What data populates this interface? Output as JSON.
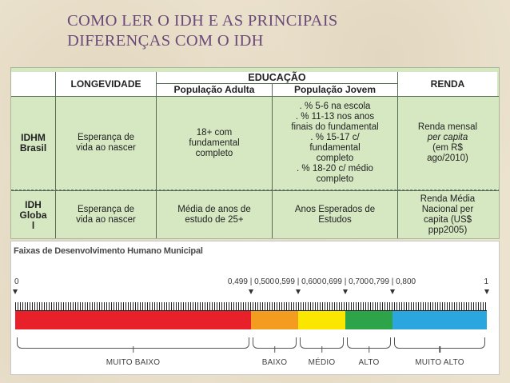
{
  "title": {
    "line1": "COMO LER O IDH E AS PRINCIPAIS",
    "line2": "DIFERENÇAS COM O IDH"
  },
  "table": {
    "headers": {
      "longevidade": "LONGEVIDADE",
      "educacao": "EDUCAÇÃO",
      "populacao_adulta": "População Adulta",
      "populacao_jovem": "População Jovem",
      "renda": "RENDA"
    },
    "rows": {
      "idhm": {
        "label_line1": "IDHM",
        "label_line2": "Brasil",
        "longevidade_line1": "Esperança de",
        "longevidade_line2": "vida ao nascer",
        "adulta_line1": "18+ com",
        "adulta_line2": "fundamental",
        "adulta_line3": "completo",
        "jovem": [
          ". % 5-6 na escola",
          ". % 11-13 nos anos",
          "finais do fundamental",
          ". % 15-17 c/",
          "fundamental",
          "completo",
          ". % 18-20 c/ médio",
          "completo"
        ],
        "renda_line1": "Renda mensal",
        "renda_line2": "per capita",
        "renda_line3": "(em R$",
        "renda_line4": "ago/2010)"
      },
      "idh": {
        "label_line1": "IDH",
        "label_line2": "Globa",
        "label_line3": "l",
        "longevidade_line1": "Esperança de",
        "longevidade_line2": "vida ao nascer",
        "adulta_line1": "Média de anos de",
        "adulta_line2": "estudo de 25+",
        "jovem_line1": "Anos Esperados de",
        "jovem_line2": "Estudos",
        "renda_line1": "Renda Média",
        "renda_line2": "Nacional per",
        "renda_line3": "capita (US$",
        "renda_line4": "ppp2005)"
      }
    }
  },
  "faixas": {
    "title": "Faixas de Desenvolvimento Humano Municipal",
    "ticks": [
      {
        "label": "0",
        "value": 0
      },
      {
        "label": "0,499 | 0,500",
        "value": 0.5
      },
      {
        "label": "0,599 | 0,600",
        "value": 0.6
      },
      {
        "label": "0,699 | 0,700",
        "value": 0.7
      },
      {
        "label": "0,799 | 0,800",
        "value": 0.8
      },
      {
        "label": "1",
        "value": 1
      }
    ],
    "bands": [
      {
        "label": "MUITO BAIXO",
        "from": 0,
        "to": 0.5,
        "color": "#e8202a"
      },
      {
        "label": "BAIXO",
        "from": 0.5,
        "to": 0.6,
        "color": "#f39c1f"
      },
      {
        "label": "MÉDIO",
        "from": 0.6,
        "to": 0.7,
        "color": "#fbe600"
      },
      {
        "label": "ALTO",
        "from": 0.7,
        "to": 0.8,
        "color": "#2da449"
      },
      {
        "label": "MUITO ALTO",
        "from": 0.8,
        "to": 1,
        "color": "#2ca6df"
      }
    ]
  }
}
